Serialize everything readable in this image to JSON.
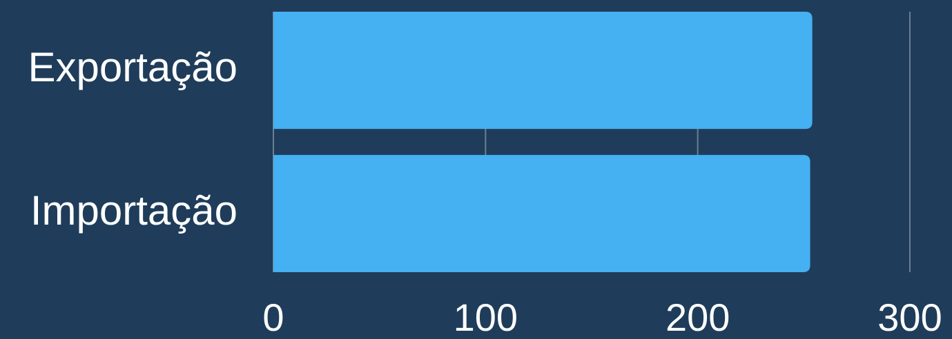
{
  "chart_data": {
    "type": "hbar",
    "categories": [
      "Exportação",
      "Importação"
    ],
    "values": [
      254,
      253
    ],
    "color": "#45b0f2",
    "xlim": [
      0,
      300
    ],
    "xticks": [
      0,
      100,
      200,
      300
    ],
    "grid": true
  }
}
